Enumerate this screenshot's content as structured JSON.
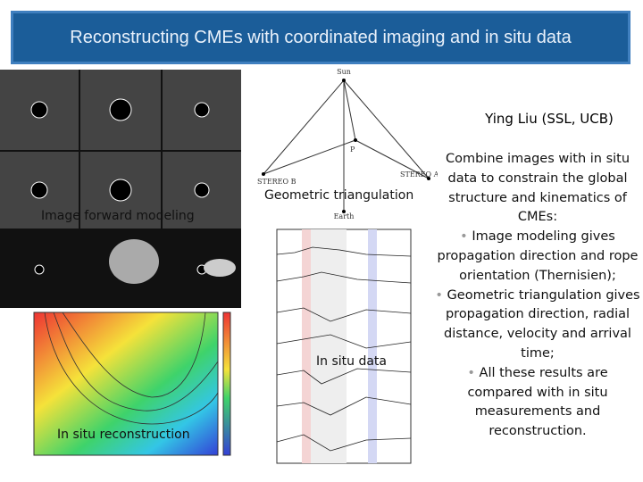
{
  "header": {
    "title": "Reconstructing CMEs with coordinated imaging and in situ data"
  },
  "author": "Ying Liu (SSL, UCB)",
  "panels": {
    "forward_modeling": "Image forward modeling",
    "triangulation": "Geometric triangulation",
    "in_situ_data": "In situ data",
    "in_situ_reconstruction": "In situ reconstruction"
  },
  "diagram": {
    "nodes": [
      {
        "label": "Sun"
      },
      {
        "label": "STEREO B"
      },
      {
        "label": "STEREO A"
      },
      {
        "label": "Earth"
      },
      {
        "label": "P"
      }
    ]
  },
  "summary": {
    "intro": "Combine images with in situ data to constrain the global structure and kinematics of CMEs:",
    "bullets": [
      "Image modeling gives propagation direction and rope orientation (Thernisien);",
      "Geometric triangulation gives propagation direction, radial distance, velocity and arrival time;",
      "All these results are compared with in situ measurements and reconstruction."
    ]
  }
}
